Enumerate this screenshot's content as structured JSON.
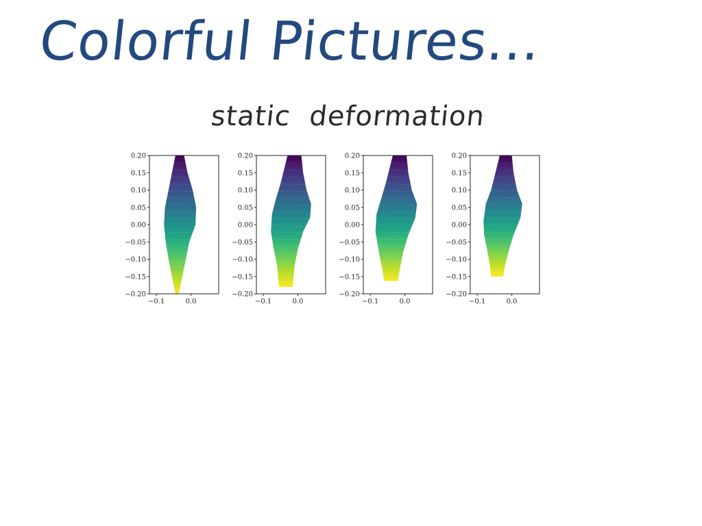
{
  "slide": {
    "title": "Colorful Pictures...",
    "subtitle": "static deformation",
    "title_color": "#23497f",
    "subtitle_color": "#2b2b2b"
  },
  "chart_data": [
    {
      "type": "area",
      "xlim": [
        -0.12,
        0.08
      ],
      "ylim": [
        -0.2,
        0.2
      ],
      "xticks": [
        -0.1,
        0.0
      ],
      "xticklabels": [
        "−0.1",
        "0.0"
      ],
      "yticks": [
        0.2,
        0.15,
        0.1,
        0.05,
        0.0,
        -0.05,
        -0.1,
        -0.15,
        -0.2
      ],
      "yticklabels": [
        "0.20",
        "0.15",
        "0.10",
        "0.05",
        "0.00",
        "−0.05",
        "−0.10",
        "−0.15",
        "−0.20"
      ],
      "colormap": "viridis",
      "outline": [
        [
          -0.045,
          0.2
        ],
        [
          -0.02,
          0.2
        ],
        [
          -0.01,
          0.15
        ],
        [
          0.005,
          0.1
        ],
        [
          0.015,
          0.05
        ],
        [
          0.013,
          0.0
        ],
        [
          -0.005,
          -0.05
        ],
        [
          -0.015,
          -0.1
        ],
        [
          -0.025,
          -0.15
        ],
        [
          -0.035,
          -0.2
        ],
        [
          -0.045,
          -0.2
        ],
        [
          -0.055,
          -0.15
        ],
        [
          -0.065,
          -0.1
        ],
        [
          -0.073,
          -0.05
        ],
        [
          -0.078,
          0.0
        ],
        [
          -0.075,
          0.05
        ],
        [
          -0.065,
          0.1
        ],
        [
          -0.055,
          0.15
        ]
      ]
    },
    {
      "type": "area",
      "xlim": [
        -0.12,
        0.08
      ],
      "ylim": [
        -0.2,
        0.2
      ],
      "xticks": [
        -0.1,
        0.0
      ],
      "xticklabels": [
        "−0.1",
        "0.0"
      ],
      "yticks": [
        0.2,
        0.15,
        0.1,
        0.05,
        0.0,
        -0.05,
        -0.1,
        -0.15,
        -0.2
      ],
      "yticklabels": [
        "0.20",
        "0.15",
        "0.10",
        "0.05",
        "0.00",
        "−0.05",
        "−0.10",
        "−0.15",
        "−0.20"
      ],
      "colormap": "viridis",
      "outline": [
        [
          -0.03,
          0.2
        ],
        [
          0.01,
          0.2
        ],
        [
          0.015,
          0.15
        ],
        [
          0.025,
          0.1
        ],
        [
          0.038,
          0.06
        ],
        [
          0.035,
          0.02
        ],
        [
          0.015,
          -0.02
        ],
        [
          0.0,
          -0.07
        ],
        [
          -0.01,
          -0.12
        ],
        [
          -0.015,
          -0.18
        ],
        [
          -0.055,
          -0.18
        ],
        [
          -0.06,
          -0.12
        ],
        [
          -0.07,
          -0.07
        ],
        [
          -0.078,
          -0.02
        ],
        [
          -0.075,
          0.03
        ],
        [
          -0.065,
          0.07
        ],
        [
          -0.05,
          0.12
        ],
        [
          -0.04,
          0.16
        ]
      ]
    },
    {
      "type": "area",
      "xlim": [
        -0.12,
        0.08
      ],
      "ylim": [
        -0.2,
        0.2
      ],
      "xticks": [
        -0.1,
        0.0
      ],
      "xticklabels": [
        "−0.1",
        "0.0"
      ],
      "yticks": [
        0.2,
        0.15,
        0.1,
        0.05,
        0.0,
        -0.05,
        -0.1,
        -0.15,
        -0.2
      ],
      "yticklabels": [
        "0.20",
        "0.15",
        "0.10",
        "0.05",
        "0.00",
        "−0.05",
        "−0.10",
        "−0.15",
        "−0.20"
      ],
      "colormap": "viridis",
      "outline": [
        [
          -0.035,
          0.2
        ],
        [
          0.005,
          0.2
        ],
        [
          0.01,
          0.15
        ],
        [
          0.02,
          0.1
        ],
        [
          0.035,
          0.06
        ],
        [
          0.03,
          0.02
        ],
        [
          0.01,
          -0.03
        ],
        [
          -0.005,
          -0.08
        ],
        [
          -0.015,
          -0.13
        ],
        [
          -0.02,
          -0.163
        ],
        [
          -0.06,
          -0.163
        ],
        [
          -0.065,
          -0.13
        ],
        [
          -0.075,
          -0.08
        ],
        [
          -0.085,
          -0.02
        ],
        [
          -0.082,
          0.03
        ],
        [
          -0.07,
          0.07
        ],
        [
          -0.055,
          0.12
        ],
        [
          -0.045,
          0.16
        ]
      ]
    },
    {
      "type": "area",
      "xlim": [
        -0.12,
        0.08
      ],
      "ylim": [
        -0.2,
        0.2
      ],
      "xticks": [
        -0.1,
        0.0
      ],
      "xticklabels": [
        "−0.1",
        "0.0"
      ],
      "yticks": [
        0.2,
        0.15,
        0.1,
        0.05,
        0.0,
        -0.05,
        -0.1,
        -0.15,
        -0.2
      ],
      "yticklabels": [
        "0.20",
        "0.15",
        "0.10",
        "0.05",
        "0.00",
        "−0.05",
        "−0.10",
        "−0.15",
        "−0.20"
      ],
      "colormap": "viridis",
      "outline": [
        [
          -0.035,
          0.2
        ],
        [
          0.0,
          0.2
        ],
        [
          0.005,
          0.15
        ],
        [
          0.015,
          0.1
        ],
        [
          0.03,
          0.06
        ],
        [
          0.025,
          0.02
        ],
        [
          0.005,
          -0.03
        ],
        [
          -0.01,
          -0.08
        ],
        [
          -0.02,
          -0.12
        ],
        [
          -0.025,
          -0.15
        ],
        [
          -0.06,
          -0.15
        ],
        [
          -0.063,
          -0.12
        ],
        [
          -0.07,
          -0.08
        ],
        [
          -0.08,
          -0.03
        ],
        [
          -0.082,
          0.01
        ],
        [
          -0.075,
          0.06
        ],
        [
          -0.06,
          0.1
        ],
        [
          -0.045,
          0.16
        ]
      ]
    }
  ]
}
